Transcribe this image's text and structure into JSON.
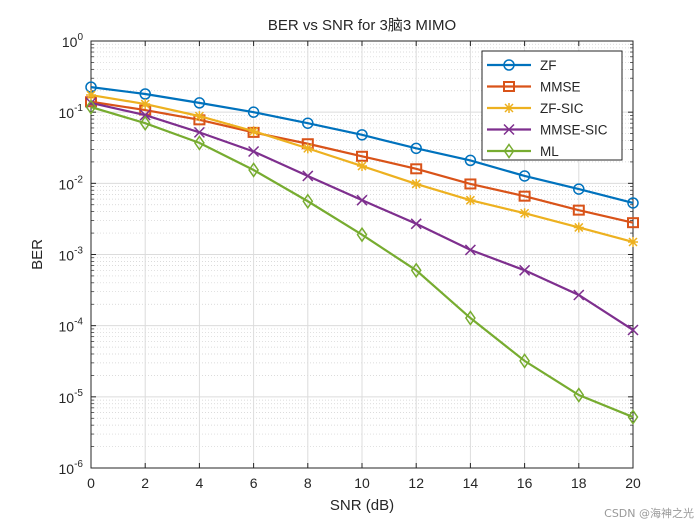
{
  "chart_data": {
    "type": "line",
    "title": "BER vs SNR for 3脑3 MIMO",
    "xlabel": "SNR (dB)",
    "ylabel": "BER",
    "xlim": [
      0,
      20
    ],
    "ylim": [
      1e-06,
      1
    ],
    "yscale": "log",
    "grid": true,
    "minor_grid": true,
    "legend_placement": "top-right",
    "x": [
      0,
      2,
      4,
      6,
      8,
      10,
      12,
      14,
      16,
      18,
      20
    ],
    "xticks": [
      "0",
      "2",
      "4",
      "6",
      "8",
      "10",
      "12",
      "14",
      "16",
      "18",
      "20"
    ],
    "yticks": [
      {
        "base": "10",
        "exp": "0"
      },
      {
        "base": "10",
        "exp": "-1"
      },
      {
        "base": "10",
        "exp": "-2"
      },
      {
        "base": "10",
        "exp": "-3"
      },
      {
        "base": "10",
        "exp": "-4"
      },
      {
        "base": "10",
        "exp": "-5"
      },
      {
        "base": "10",
        "exp": "-6"
      }
    ],
    "series": [
      {
        "name": "ZF",
        "color": "#0072BD",
        "marker": "circle",
        "values": [
          0.225,
          0.18,
          0.135,
          0.1,
          0.07,
          0.048,
          0.031,
          0.021,
          0.0127,
          0.0083,
          0.0053
        ]
      },
      {
        "name": "MMSE",
        "color": "#D95319",
        "marker": "square",
        "values": [
          0.14,
          0.107,
          0.078,
          0.052,
          0.036,
          0.024,
          0.016,
          0.0098,
          0.0066,
          0.0042,
          0.0028
        ]
      },
      {
        "name": "ZF-SIC",
        "color": "#EDB120",
        "marker": "asterisk",
        "values": [
          0.174,
          0.13,
          0.088,
          0.054,
          0.031,
          0.0175,
          0.0098,
          0.0058,
          0.0038,
          0.0024,
          0.0015
        ]
      },
      {
        "name": "MMSE-SIC",
        "color": "#7E2F8E",
        "marker": "x",
        "values": [
          0.135,
          0.091,
          0.052,
          0.028,
          0.0127,
          0.0058,
          0.0027,
          0.00116,
          0.0006,
          0.00027,
          8.7e-05
        ]
      },
      {
        "name": "ML",
        "color": "#77AC30",
        "marker": "diamond",
        "values": [
          0.118,
          0.07,
          0.037,
          0.0154,
          0.0056,
          0.0019,
          0.0006,
          0.000128,
          3.2e-05,
          1.06e-05,
          5.2e-06
        ]
      }
    ]
  },
  "watermark": "CSDN @海神之光"
}
